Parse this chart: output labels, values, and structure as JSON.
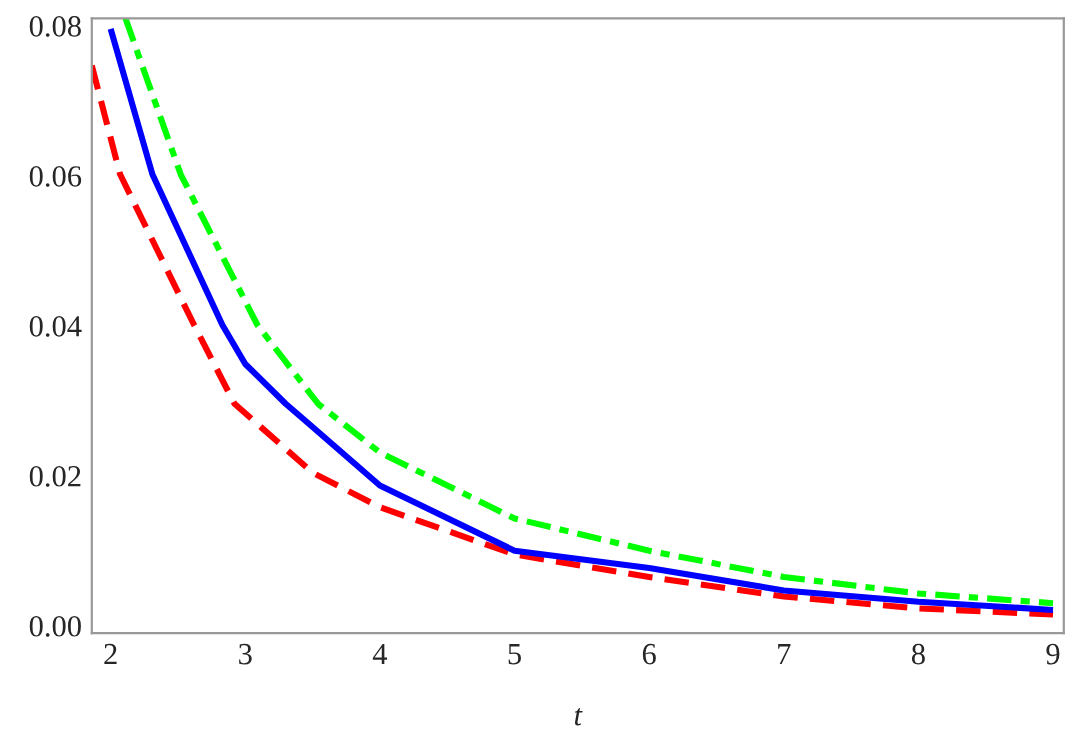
{
  "chart_data": {
    "type": "line",
    "xlabel": "t",
    "xlim": [
      1.86,
      9.08
    ],
    "ylim": [
      -0.001,
      0.081
    ],
    "xticks": [
      2,
      3,
      4,
      5,
      6,
      7,
      8,
      9
    ],
    "yticks": [
      {
        "value": 0,
        "label": "0.00"
      },
      {
        "value": 0.02,
        "label": "0.02"
      },
      {
        "value": 0.04,
        "label": "0.04"
      },
      {
        "value": 0.06,
        "label": "0.06"
      },
      {
        "value": 0.08,
        "label": "0.08"
      }
    ],
    "grid": false,
    "legend": false,
    "marker": "none",
    "series": [
      {
        "color": "#ff0000",
        "line_style": "dashed",
        "x": [
          1.86,
          2.07,
          2.62,
          2.92,
          3.5,
          4,
          5,
          6,
          7,
          8,
          9
        ],
        "values": [
          0.0747,
          0.0602,
          0.0401,
          0.0296,
          0.0204,
          0.0158,
          0.0095,
          0.0065,
          0.0039,
          0.0023,
          0.0015
        ]
      },
      {
        "color": "#0000ff",
        "line_style": "solid",
        "x": [
          2,
          2.31,
          2.83,
          3,
          3.3,
          3.5,
          4,
          5,
          6,
          7,
          8,
          9
        ],
        "values": [
          0.0796,
          0.0602,
          0.0401,
          0.0349,
          0.0296,
          0.0265,
          0.0187,
          0.01,
          0.0077,
          0.0047,
          0.0032,
          0.0021
        ]
      },
      {
        "color": "#00ff00",
        "line_style": "dashdot",
        "x": [
          2.11,
          2.52,
          3.09,
          3.54,
          4,
          5,
          6,
          7,
          8,
          9
        ],
        "values": [
          0.081,
          0.0602,
          0.0401,
          0.0296,
          0.0231,
          0.0143,
          0.01,
          0.0065,
          0.0043,
          0.003
        ]
      }
    ]
  }
}
